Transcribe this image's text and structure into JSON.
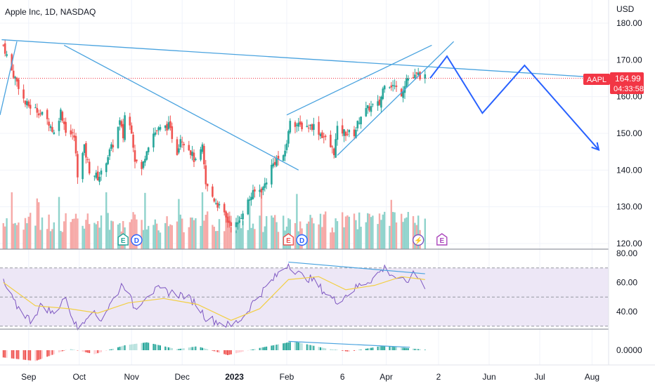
{
  "header": {
    "title": "Apple Inc, 1D, NASDAQ",
    "currency": "USD"
  },
  "colors": {
    "up": "#26a69a",
    "down": "#ef5350",
    "vol_up": "#8fd3cc",
    "vol_down": "#f6a9a7",
    "trendline": "#4aa3df",
    "projection": "#2962ff",
    "rsi_line": "#7e57c2",
    "rsi_ma": "#f2cf44",
    "rsi_band": "#ede7f6",
    "price_tag": "#f23645"
  },
  "current_price": {
    "symbol": "AAPL",
    "value": "164.99",
    "countdown": "04:33:58"
  },
  "events": [
    {
      "date": "2022-10-27",
      "label": "E",
      "type": "earnings"
    },
    {
      "date": "2022-11-04",
      "label": "D",
      "type": "dividend"
    },
    {
      "date": "2023-02-02",
      "label": "E",
      "type": "earnings"
    },
    {
      "date": "2023-02-10",
      "label": "D",
      "type": "dividend"
    },
    {
      "date": "2023-04-20",
      "label": "⚡",
      "type": "news"
    },
    {
      "date": "2023-05-04",
      "label": "E",
      "type": "earnings"
    }
  ],
  "chart_data": {
    "type": "candlestick",
    "price_axis": {
      "ticks": [
        "180.00",
        "170.00",
        "160.00",
        "150.00",
        "140.00",
        "130.00",
        "120.00"
      ],
      "ylim": [
        118,
        183
      ]
    },
    "time_axis": {
      "labels": [
        {
          "date": "2022-09-01",
          "text": "Sep",
          "bold": false
        },
        {
          "date": "2022-10-01",
          "text": "Oct",
          "bold": false
        },
        {
          "date": "2022-11-01",
          "text": "Nov",
          "bold": false
        },
        {
          "date": "2022-12-01",
          "text": "Dec",
          "bold": false
        },
        {
          "date": "2023-01-01",
          "text": "2023",
          "bold": true
        },
        {
          "date": "2023-02-01",
          "text": "Feb",
          "bold": false
        },
        {
          "date": "2023-03-06",
          "text": "6",
          "bold": false
        },
        {
          "date": "2023-04-01",
          "text": "Apr",
          "bold": false
        },
        {
          "date": "2023-05-02",
          "text": "2",
          "bold": false
        },
        {
          "date": "2023-06-01",
          "text": "Jun",
          "bold": false
        },
        {
          "date": "2023-07-01",
          "text": "Jul",
          "bold": false
        },
        {
          "date": "2023-08-01",
          "text": "Aug",
          "bold": false
        }
      ]
    },
    "close_path": [
      [
        "2022-08-17",
        174
      ],
      [
        "2022-08-22",
        167
      ],
      [
        "2022-08-26",
        163
      ],
      [
        "2022-08-30",
        158
      ],
      [
        "2022-09-07",
        156
      ],
      [
        "2022-09-13",
        153
      ],
      [
        "2022-09-16",
        150
      ],
      [
        "2022-09-20",
        156
      ],
      [
        "2022-09-23",
        151
      ],
      [
        "2022-09-28",
        149
      ],
      [
        "2022-09-30",
        139
      ],
      [
        "2022-10-04",
        146
      ],
      [
        "2022-10-07",
        140
      ],
      [
        "2022-10-12",
        138
      ],
      [
        "2022-10-14",
        139
      ],
      [
        "2022-10-18",
        144
      ],
      [
        "2022-10-21",
        147
      ],
      [
        "2022-10-25",
        153
      ],
      [
        "2022-10-27",
        149
      ],
      [
        "2022-10-28",
        155
      ],
      [
        "2022-11-01",
        151
      ],
      [
        "2022-11-03",
        143
      ],
      [
        "2022-11-07",
        140
      ],
      [
        "2022-11-10",
        146
      ],
      [
        "2022-11-14",
        150
      ],
      [
        "2022-11-17",
        151
      ],
      [
        "2022-11-23",
        152
      ],
      [
        "2022-11-28",
        145
      ],
      [
        "2022-11-30",
        149
      ],
      [
        "2022-12-05",
        146
      ],
      [
        "2022-12-09",
        142
      ],
      [
        "2022-12-13",
        146
      ],
      [
        "2022-12-15",
        136
      ],
      [
        "2022-12-20",
        132
      ],
      [
        "2022-12-23",
        130
      ],
      [
        "2022-12-28",
        126
      ],
      [
        "2023-01-03",
        125
      ],
      [
        "2023-01-06",
        129
      ],
      [
        "2023-01-11",
        133
      ],
      [
        "2023-01-13",
        134
      ],
      [
        "2023-01-18",
        135
      ],
      [
        "2023-01-23",
        141
      ],
      [
        "2023-01-26",
        143
      ],
      [
        "2023-01-30",
        143
      ],
      [
        "2023-02-02",
        150
      ],
      [
        "2023-02-03",
        154
      ],
      [
        "2023-02-08",
        152
      ],
      [
        "2023-02-14",
        152
      ],
      [
        "2023-02-17",
        152
      ],
      [
        "2023-02-23",
        149
      ],
      [
        "2023-03-01",
        145
      ],
      [
        "2023-03-03",
        151
      ],
      [
        "2023-03-09",
        150
      ],
      [
        "2023-03-13",
        150
      ],
      [
        "2023-03-17",
        155
      ],
      [
        "2023-03-22",
        157
      ],
      [
        "2023-03-28",
        158
      ],
      [
        "2023-03-31",
        164
      ],
      [
        "2023-04-05",
        163
      ],
      [
        "2023-04-10",
        161
      ],
      [
        "2023-04-13",
        165
      ],
      [
        "2023-04-17",
        165
      ],
      [
        "2023-04-20",
        166
      ],
      [
        "2023-04-24",
        165
      ]
    ],
    "drawings": {
      "trendlines": [
        {
          "from": [
            "2022-08-16",
            175.5
          ],
          "to": [
            "2023-08-12",
            164.99
          ]
        },
        {
          "from": [
            "2022-08-15",
            155.0
          ],
          "to": [
            "2022-08-25",
            175.0
          ]
        },
        {
          "from": [
            "2022-09-22",
            174.0
          ],
          "to": [
            "2023-02-08",
            140.0
          ]
        },
        {
          "from": [
            "2023-02-01",
            155.0
          ],
          "to": [
            "2023-04-28",
            174.0
          ]
        },
        {
          "from": [
            "2023-03-03",
            144.0
          ],
          "to": [
            "2023-05-11",
            175.0
          ]
        }
      ],
      "projection": [
        [
          "2023-04-27",
          165
        ],
        [
          "2023-05-07",
          171
        ],
        [
          "2023-05-28",
          155.5
        ],
        [
          "2023-06-22",
          168.5
        ],
        [
          "2023-08-05",
          145.5
        ]
      ]
    },
    "rsi": {
      "ticks": [
        "80.00",
        "60.00",
        "40.00"
      ],
      "ylim": [
        26,
        81
      ],
      "bands": [
        70,
        50,
        30
      ],
      "path": [
        [
          "2022-08-17",
          60
        ],
        [
          "2022-08-24",
          45
        ],
        [
          "2022-09-02",
          34
        ],
        [
          "2022-09-09",
          45
        ],
        [
          "2022-09-16",
          38
        ],
        [
          "2022-09-22",
          50
        ],
        [
          "2022-09-30",
          28
        ],
        [
          "2022-10-07",
          40
        ],
        [
          "2022-10-14",
          35
        ],
        [
          "2022-10-21",
          48
        ],
        [
          "2022-10-27",
          60
        ],
        [
          "2022-11-03",
          42
        ],
        [
          "2022-11-10",
          52
        ],
        [
          "2022-11-17",
          55
        ],
        [
          "2022-11-25",
          53
        ],
        [
          "2022-12-02",
          51
        ],
        [
          "2022-12-09",
          46
        ],
        [
          "2022-12-15",
          36
        ],
        [
          "2022-12-22",
          33
        ],
        [
          "2022-12-30",
          30
        ],
        [
          "2023-01-06",
          36
        ],
        [
          "2023-01-13",
          48
        ],
        [
          "2023-01-20",
          57
        ],
        [
          "2023-01-27",
          66
        ],
        [
          "2023-02-02",
          73
        ],
        [
          "2023-02-09",
          65
        ],
        [
          "2023-02-16",
          62
        ],
        [
          "2023-02-23",
          54
        ],
        [
          "2023-03-02",
          47
        ],
        [
          "2023-03-09",
          52
        ],
        [
          "2023-03-16",
          58
        ],
        [
          "2023-03-23",
          62
        ],
        [
          "2023-03-31",
          70
        ],
        [
          "2023-04-06",
          64
        ],
        [
          "2023-04-12",
          60
        ],
        [
          "2023-04-18",
          66
        ],
        [
          "2023-04-24",
          58
        ]
      ],
      "ma_path": [
        [
          "2022-08-17",
          60
        ],
        [
          "2022-09-05",
          44
        ],
        [
          "2022-09-25",
          42
        ],
        [
          "2022-10-12",
          39
        ],
        [
          "2022-10-30",
          46
        ],
        [
          "2022-11-20",
          49
        ],
        [
          "2022-12-10",
          45
        ],
        [
          "2022-12-30",
          34
        ],
        [
          "2023-01-16",
          42
        ],
        [
          "2023-02-02",
          62
        ],
        [
          "2023-02-20",
          64
        ],
        [
          "2023-03-08",
          55
        ],
        [
          "2023-03-25",
          58
        ],
        [
          "2023-04-10",
          64
        ],
        [
          "2023-04-24",
          62
        ]
      ],
      "divergence_line": {
        "from": [
          "2023-02-02",
          74
        ],
        "to": [
          "2023-04-24",
          66
        ]
      }
    },
    "macd": {
      "ticks": [
        "0.0000"
      ],
      "zero": 0,
      "divergence_line": {
        "from": [
          "2023-02-02",
          1.8
        ],
        "to": [
          "2023-04-15",
          0.6
        ]
      }
    }
  }
}
